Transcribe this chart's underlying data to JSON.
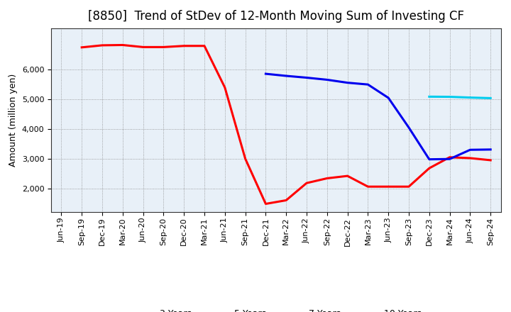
{
  "title": "[8850]  Trend of StDev of 12-Month Moving Sum of Investing CF",
  "ylabel": "Amount (million yen)",
  "background_color": "#ffffff",
  "plot_bg_color": "#e8f0f8",
  "grid_color": "#aaaaaa",
  "series": {
    "3 Years": {
      "color": "#ff0000",
      "x": [
        "Jun-19",
        "Sep-19",
        "Dec-19",
        "Mar-20",
        "Jun-20",
        "Sep-20",
        "Dec-20",
        "Mar-21",
        "Jun-21",
        "Sep-21",
        "Dec-21",
        "Mar-22",
        "Jun-22",
        "Sep-22",
        "Dec-22",
        "Mar-23",
        "Jun-23",
        "Sep-23",
        "Dec-23",
        "Mar-24",
        "Jun-24",
        "Sep-24"
      ],
      "y": [
        null,
        6750,
        6820,
        6830,
        6760,
        6760,
        6800,
        6800,
        5400,
        3000,
        1480,
        1600,
        2180,
        2340,
        2420,
        2060,
        2060,
        2060,
        2680,
        3050,
        3020,
        2950
      ]
    },
    "5 Years": {
      "color": "#0000ee",
      "x": [
        "Dec-21",
        "Mar-22",
        "Jun-22",
        "Sep-22",
        "Dec-22",
        "Mar-23",
        "Jun-23",
        "Sep-23",
        "Dec-23",
        "Mar-24",
        "Jun-24",
        "Sep-24"
      ],
      "y": [
        5860,
        5790,
        5730,
        5660,
        5560,
        5500,
        5050,
        4050,
        2980,
        2990,
        3300,
        3310
      ]
    },
    "7 Years": {
      "color": "#00ccee",
      "x": [
        "Dec-23",
        "Mar-24",
        "Jun-24",
        "Sep-24"
      ],
      "y": [
        5090,
        5085,
        5060,
        5040
      ]
    },
    "10 Years": {
      "color": "#00aa00",
      "x": [],
      "y": []
    }
  },
  "ylim": [
    1200,
    7400
  ],
  "yticks": [
    2000,
    3000,
    4000,
    5000,
    6000
  ],
  "xticks": [
    "Jun-19",
    "Sep-19",
    "Dec-19",
    "Mar-20",
    "Jun-20",
    "Sep-20",
    "Dec-20",
    "Mar-21",
    "Jun-21",
    "Sep-21",
    "Dec-21",
    "Mar-22",
    "Jun-22",
    "Sep-22",
    "Dec-22",
    "Mar-23",
    "Jun-23",
    "Sep-23",
    "Dec-23",
    "Mar-24",
    "Jun-24",
    "Sep-24"
  ],
  "title_fontsize": 12,
  "axis_label_fontsize": 9,
  "tick_fontsize": 8,
  "legend_fontsize": 9,
  "linewidth": 2.2
}
